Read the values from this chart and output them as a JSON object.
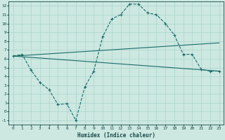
{
  "xlabel": "Humidex (Indice chaleur)",
  "bg_color": "#cce8e0",
  "line_color": "#1a6b6b",
  "grid_color": "#aad4cc",
  "line1_x": [
    0,
    1,
    2,
    3,
    4,
    5,
    6,
    7,
    8,
    9,
    10,
    11,
    12,
    13,
    14,
    15,
    16,
    17,
    18,
    19,
    20,
    21,
    22,
    23
  ],
  "line1_y": [
    6.3,
    6.5,
    4.7,
    3.3,
    2.5,
    0.8,
    0.9,
    -1.0,
    2.8,
    4.6,
    8.5,
    10.5,
    11.0,
    12.2,
    12.2,
    11.2,
    11.0,
    10.0,
    8.7,
    6.5,
    6.5,
    4.8,
    4.6,
    4.6
  ],
  "line2_x": [
    0,
    23
  ],
  "line2_y": [
    6.3,
    7.8
  ],
  "line3_x": [
    0,
    23
  ],
  "line3_y": [
    6.3,
    4.6
  ],
  "xlim": [
    -0.5,
    23.5
  ],
  "ylim": [
    -1.5,
    12.5
  ],
  "xticks": [
    0,
    1,
    2,
    3,
    4,
    5,
    6,
    7,
    8,
    9,
    10,
    11,
    12,
    13,
    14,
    15,
    16,
    17,
    18,
    19,
    20,
    21,
    22,
    23
  ],
  "yticks": [
    -1,
    0,
    1,
    2,
    3,
    4,
    5,
    6,
    7,
    8,
    9,
    10,
    11,
    12
  ],
  "tick_fontsize": 4.5,
  "xlabel_fontsize": 5.5
}
